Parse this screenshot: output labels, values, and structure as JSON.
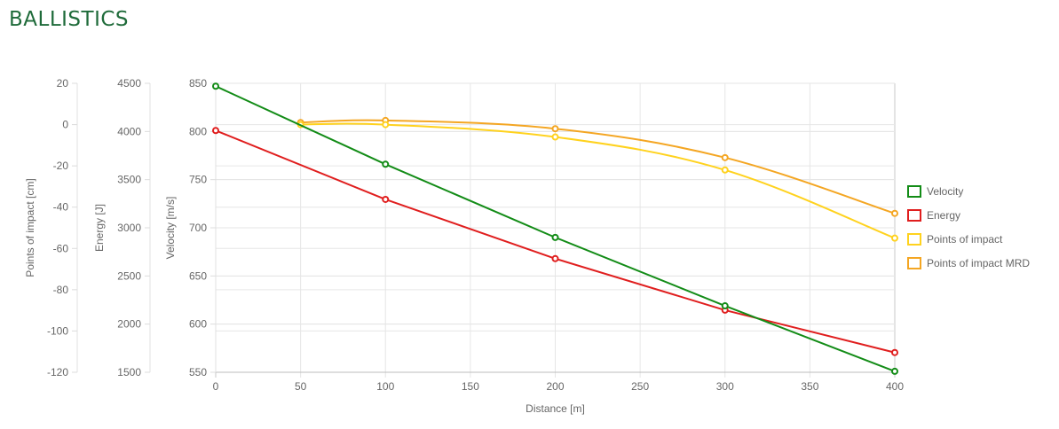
{
  "header": {
    "title": "BALLISTICS"
  },
  "chart_data": {
    "type": "line",
    "xlabel": "Distance [m]",
    "x_range": [
      0,
      400
    ],
    "x_ticks": [
      0,
      50,
      100,
      150,
      200,
      250,
      300,
      350,
      400
    ],
    "grid": true,
    "legend_position": "right",
    "axes": [
      {
        "id": "poi",
        "label": "Points of impact [cm]",
        "range": [
          -120,
          20
        ],
        "ticks": [
          20,
          0,
          -20,
          -40,
          -60,
          -80,
          -100,
          -120
        ]
      },
      {
        "id": "energy",
        "label": "Energy [J]",
        "range": [
          1500,
          4500
        ],
        "ticks": [
          4500,
          4000,
          3500,
          3000,
          2500,
          2000,
          1500
        ]
      },
      {
        "id": "velocity",
        "label": "Velocity [m/s]",
        "range": [
          550,
          850
        ],
        "ticks": [
          850,
          800,
          750,
          700,
          650,
          600,
          550
        ]
      }
    ],
    "series": [
      {
        "name": "Velocity",
        "axis": "velocity",
        "color": "#138c17",
        "smooth": false,
        "x": [
          0,
          100,
          200,
          300,
          400
        ],
        "y": [
          847,
          766,
          690,
          619,
          551
        ]
      },
      {
        "name": "Energy",
        "axis": "energy",
        "color": "#e01e1e",
        "smooth": false,
        "x": [
          0,
          100,
          200,
          300,
          400
        ],
        "y": [
          4010,
          3295,
          2680,
          2145,
          1705
        ]
      },
      {
        "name": "Points of impact",
        "axis": "poi",
        "color": "#ffd21e",
        "smooth": true,
        "x": [
          50,
          100,
          200,
          300,
          400
        ],
        "y": [
          0,
          0,
          -6,
          -22,
          -55
        ]
      },
      {
        "name": "Points of impact MRD",
        "axis": "poi",
        "color": "#f4a623",
        "smooth": true,
        "x": [
          50,
          100,
          200,
          300,
          400
        ],
        "y": [
          1,
          2,
          -2,
          -16,
          -43
        ]
      }
    ]
  }
}
